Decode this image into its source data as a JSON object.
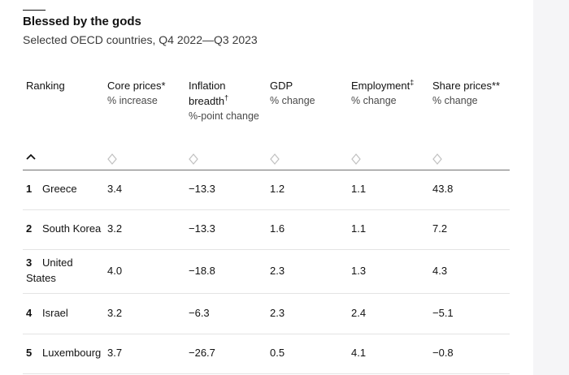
{
  "title": "Blessed by the gods",
  "subtitle": "Selected OECD countries, Q4 2022—Q3 2023",
  "columns": [
    {
      "label": "Ranking",
      "sup": "",
      "sub": ""
    },
    {
      "label": "Core prices*",
      "sup": "",
      "sub": "% increase"
    },
    {
      "label": "Inflation breadth",
      "sup": "†",
      "sub": "%-point change"
    },
    {
      "label": "GDP",
      "sup": "",
      "sub": "% change"
    },
    {
      "label": "Employment",
      "sup": "‡",
      "sub": "% change"
    },
    {
      "label": "Share prices**",
      "sup": "",
      "sub": "% change"
    }
  ],
  "inflation_label_line1": "Inflation",
  "inflation_label_line2": "breadth",
  "rows": [
    {
      "rank": "1",
      "country": "Greece",
      "core": "3.4",
      "breadth": "−13.3",
      "gdp": "1.2",
      "emp": "1.1",
      "shares": "43.8"
    },
    {
      "rank": "2",
      "country": "South Korea",
      "core": "3.2",
      "breadth": "−13.3",
      "gdp": "1.6",
      "emp": "1.1",
      "shares": "7.2"
    },
    {
      "rank": "3",
      "country_line1": "United",
      "country_line2": "States",
      "core": "4.0",
      "breadth": "−18.8",
      "gdp": "2.3",
      "emp": "1.3",
      "shares": "4.3"
    },
    {
      "rank": "4",
      "country": "Israel",
      "core": "3.2",
      "breadth": "−6.3",
      "gdp": "2.3",
      "emp": "2.4",
      "shares": "−5.1"
    },
    {
      "rank": "5",
      "country": "Luxembourg",
      "core": "3.7",
      "breadth": "−26.7",
      "gdp": "0.5",
      "emp": "4.1",
      "shares": "−0.8"
    }
  ],
  "colors": {
    "sort_icon": "#c0c0c0",
    "separator": "#e4e4e4",
    "gutter": "#f5f5f7"
  }
}
